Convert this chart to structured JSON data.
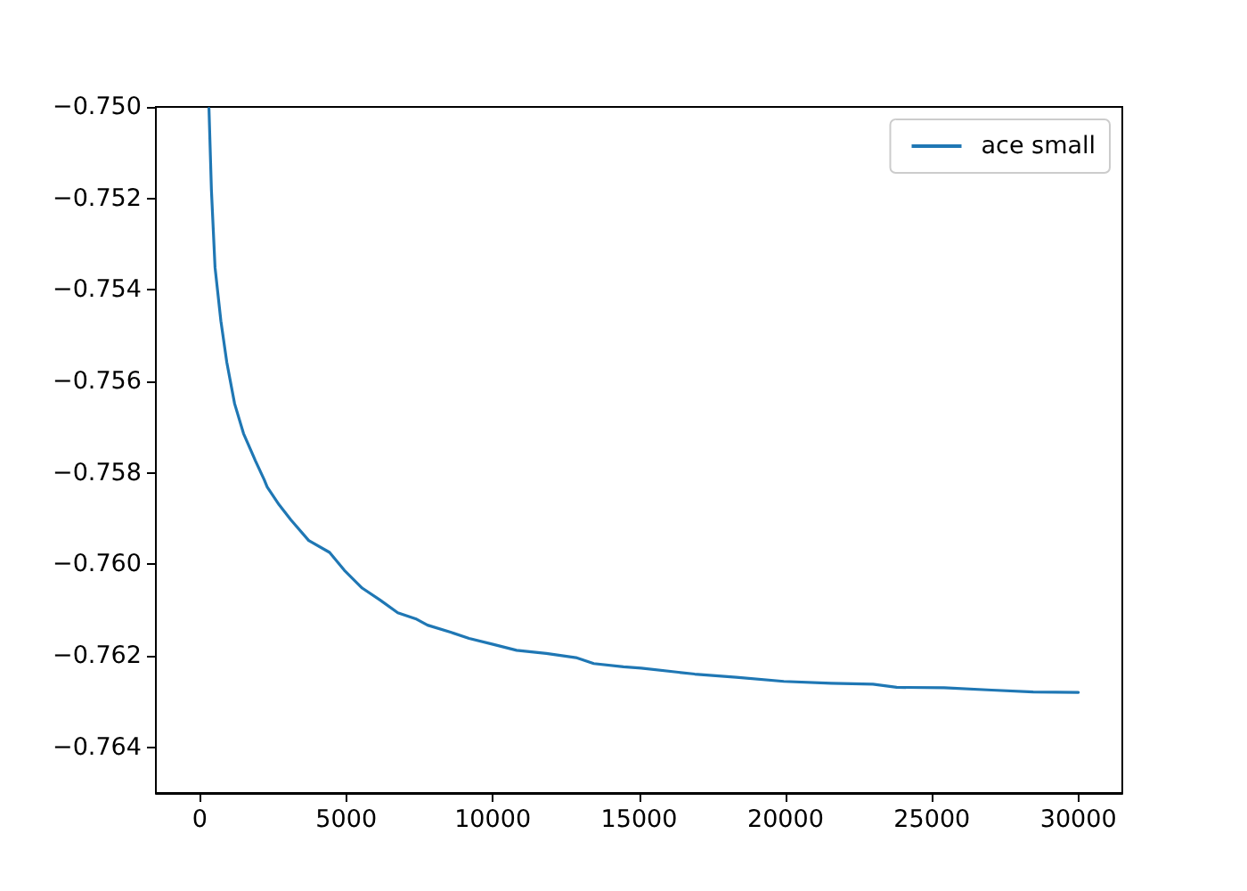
{
  "chart_data": {
    "type": "line",
    "x": [
      313,
      397,
      520,
      720,
      921,
      1189,
      1493,
      1895,
      2199,
      2302,
      2709,
      3111,
      3719,
      4431,
      4936,
      5545,
      6153,
      6761,
      7369,
      7777,
      8586,
      9194,
      10010,
      10818,
      11834,
      12844,
      13452,
      14468,
      15076,
      16901,
      18319,
      19943,
      21566,
      22984,
      23794,
      25418,
      27040,
      28459,
      30000
    ],
    "series": [
      {
        "name": "ace small",
        "color": "#1f77b4",
        "values": [
          -0.75003,
          -0.75182,
          -0.75351,
          -0.75468,
          -0.75558,
          -0.75649,
          -0.75714,
          -0.75773,
          -0.75815,
          -0.75831,
          -0.7587,
          -0.75903,
          -0.75948,
          -0.75974,
          -0.76013,
          -0.76052,
          -0.76078,
          -0.76106,
          -0.76119,
          -0.76133,
          -0.76149,
          -0.76162,
          -0.76175,
          -0.76188,
          -0.76195,
          -0.76204,
          -0.76217,
          -0.76224,
          -0.76227,
          -0.7624,
          -0.76247,
          -0.76256,
          -0.7626,
          -0.76262,
          -0.76269,
          -0.7627,
          -0.76275,
          -0.76279,
          -0.7628
        ]
      }
    ],
    "xlim": [
      -1500,
      31500
    ],
    "ylim": [
      -0.765,
      -0.75
    ],
    "xticks": [
      0,
      5000,
      10000,
      15000,
      20000,
      25000,
      30000
    ],
    "yticks": [
      {
        "value": -0.764,
        "label": "−0.764"
      },
      {
        "value": -0.762,
        "label": "−0.762"
      },
      {
        "value": -0.76,
        "label": "−0.760"
      },
      {
        "value": -0.758,
        "label": "−0.758"
      },
      {
        "value": -0.756,
        "label": "−0.756"
      },
      {
        "value": -0.754,
        "label": "−0.754"
      },
      {
        "value": -0.752,
        "label": "−0.752"
      },
      {
        "value": -0.75,
        "label": "−0.750"
      }
    ],
    "grid": false,
    "legend": "top right",
    "marker": "none",
    "line_style": "solid"
  }
}
